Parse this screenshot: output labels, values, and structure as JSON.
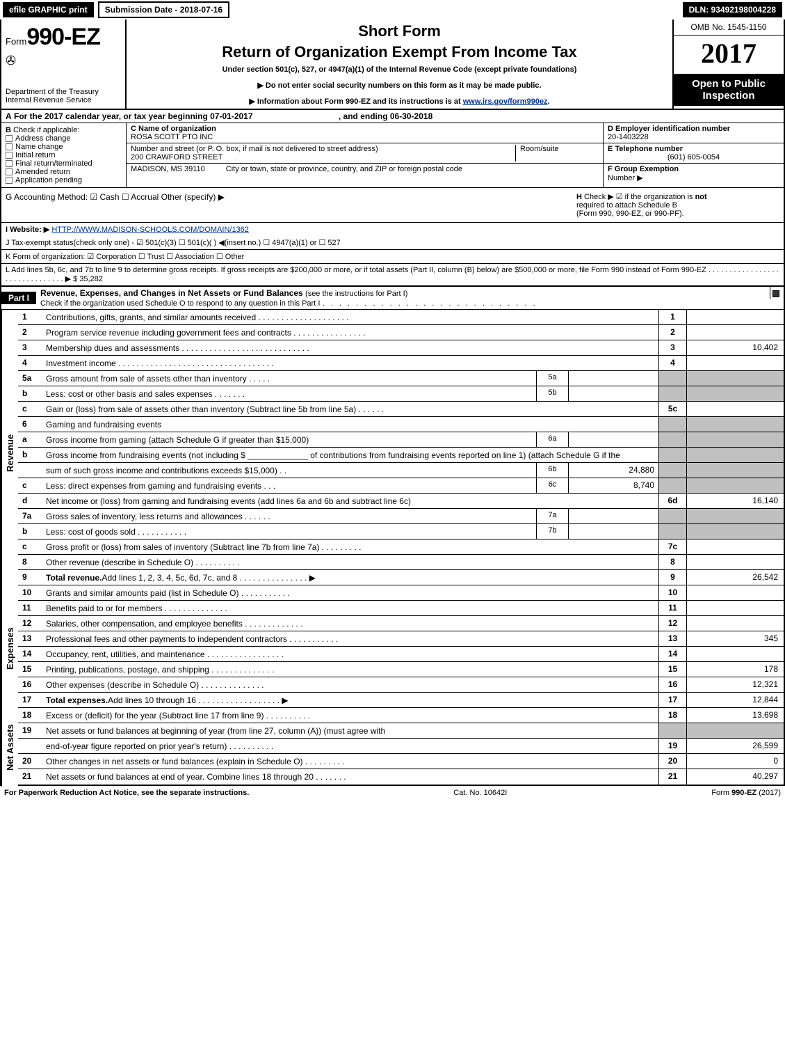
{
  "topbar": {
    "efile": "efile GRAPHIC print",
    "submission": "Submission Date - 2018-07-16",
    "dln": "DLN: 93492198004228"
  },
  "header": {
    "form_prefix": "Form",
    "form_number": "990-EZ",
    "dept1": "Department of the Treasury",
    "dept2": "Internal Revenue Service",
    "short_form": "Short Form",
    "main_title": "Return of Organization Exempt From Income Tax",
    "under_section": "Under section 501(c), 527, or 4947(a)(1) of the Internal Revenue Code (except private foundations)",
    "ssn_line": "▶ Do not enter social security numbers on this form as it may be made public.",
    "info_line_pre": "▶ Information about Form 990-EZ and its instructions is at ",
    "info_link": "www.irs.gov/form990ez",
    "info_line_post": ".",
    "omb": "OMB No. 1545-1150",
    "year": "2017",
    "open_public1": "Open to Public",
    "open_public2": "Inspection"
  },
  "tax_year": {
    "label_a": "A",
    "text": "For the 2017 calendar year, or tax year beginning 07-01-2017",
    "ending": ", and ending 06-30-2018"
  },
  "block_b": {
    "label": "B",
    "check_if": "Check if applicable:",
    "items": [
      "Address change",
      "Name change",
      "Initial return",
      "Final return/terminated",
      "Amended return",
      "Application pending"
    ]
  },
  "block_c": {
    "c_label": "C Name of organization",
    "c_value": "ROSA SCOTT PTO INC",
    "street_label": "Number and street (or P. O. box, if mail is not delivered to street address)",
    "street_value": "200 CRAWFORD STREET",
    "room_label": "Room/suite",
    "city_label": "City or town, state or province, country, and ZIP or foreign postal code",
    "city_value": "MADISON, MS  39110"
  },
  "block_d": {
    "d_label": "D Employer identification number",
    "d_value": "20-1403228",
    "e_label": "E Telephone number",
    "e_value": "(601) 605-0054",
    "f_label": "F Group Exemption",
    "f_label2": "Number ▶"
  },
  "g_line": {
    "g_left": "G Accounting Method:   ☑ Cash   ☐ Accrual   Other (specify) ▶",
    "h_label": "H",
    "h_text1": "Check ▶ ☑  if the organization is ",
    "h_not": "not",
    "h_text2": "required to attach Schedule B",
    "h_text3": "(Form 990, 990-EZ, or 990-PF)."
  },
  "i_line": {
    "label": "I Website: ▶",
    "url": "HTTP://WWW.MADISON-SCHOOLS.COM/DOMAIN/1362"
  },
  "j_line": "J Tax-exempt status(check only one) - ☑ 501(c)(3) ☐ 501(c)( ) ◀(insert no.) ☐ 4947(a)(1) or ☐ 527",
  "k_line": "K Form of organization: ☑ Corporation  ☐ Trust  ☐ Association  ☐ Other",
  "l_line": {
    "text": "L Add lines 5b, 6c, and 7b to line 9 to determine gross receipts. If gross receipts are $200,000 or more, or if total assets (Part II, column (B) below) are $500,000 or more, file Form 990 instead of Form 990-EZ  .  .  .  .  .  .  .  .  .  .  .  .  .  .  .  .  .  .  .  .  .  .  .  .  .  .  .  .  .  .  .  ▶ $ 35,282"
  },
  "part1": {
    "label": "Part I",
    "title": "Revenue, Expenses, and Changes in Net Assets or Fund Balances",
    "subtitle": "(see the instructions for Part I)",
    "check_line": "Check if the organization used Schedule O to respond to any question in this Part I"
  },
  "sections": {
    "revenue": "Revenue",
    "expenses": "Expenses",
    "netassets": "Net Assets"
  },
  "rows": [
    {
      "side": "revenue",
      "no": "1",
      "desc": "Contributions, gifts, grants, and similar amounts received  .  .  .  .  .  .  .  .  .  .  .  .  .  .  .  .  .  .  .  .",
      "end_no": "1",
      "end_val": "",
      "greybox": false
    },
    {
      "side": "revenue",
      "no": "2",
      "desc": "Program service revenue including government fees and contracts  .  .  .  .  .  .  .  .  .  .  .  .  .  .  .  .",
      "end_no": "2",
      "end_val": "",
      "greybox": false
    },
    {
      "side": "revenue",
      "no": "3",
      "desc": "Membership dues and assessments  .  .  .  .  .  .  .  .  .  .  .  .  .  .  .  .  .  .  .  .  .  .  .  .  .  .  .  .",
      "end_no": "3",
      "end_val": "10,402",
      "greybox": false
    },
    {
      "side": "revenue",
      "no": "4",
      "desc": "Investment income  .  .  .  .  .  .  .  .  .  .  .  .  .  .  .  .  .  .  .  .  .  .  .  .  .  .  .  .  .  .  .  .  .  .",
      "end_no": "4",
      "end_val": "",
      "greybox": false
    },
    {
      "side": "revenue",
      "no": "5a",
      "desc": "Gross amount from sale of assets other than inventory  .  .  .  .  .",
      "mid_no": "5a",
      "mid_val": "",
      "greybox": true
    },
    {
      "side": "revenue",
      "no": "b",
      "desc": "Less: cost or other basis and sales expenses  .  .  .  .  .  .  .",
      "mid_no": "5b",
      "mid_val": "",
      "greybox": true
    },
    {
      "side": "revenue",
      "no": "c",
      "desc": "Gain or (loss) from sale of assets other than inventory (Subtract line 5b from line 5a)     .  .  .  .  .  .",
      "end_no": "5c",
      "end_val": "",
      "greybox": false
    },
    {
      "side": "revenue",
      "no": "6",
      "desc": "Gaming and fundraising events",
      "greybox": true
    },
    {
      "side": "revenue",
      "no": "a",
      "desc": "Gross income from gaming (attach Schedule G if greater than $15,000)",
      "mid_no": "6a",
      "mid_val": "",
      "greybox": true
    },
    {
      "side": "revenue",
      "no": "b",
      "desc": "Gross income from fundraising events (not including $ _____________ of contributions from fundraising events reported on line 1) (attach Schedule G if the",
      "greybox": true
    },
    {
      "side": "revenue",
      "no": "",
      "desc": "sum of such gross income and contributions exceeds $15,000)    .   .",
      "mid_no": "6b",
      "mid_val": "24,880",
      "greybox": true
    },
    {
      "side": "revenue",
      "no": "c",
      "desc": "Less: direct expenses from gaming and fundraising events     .  .  .",
      "mid_no": "6c",
      "mid_val": "8,740",
      "greybox": true
    },
    {
      "side": "revenue",
      "no": "d",
      "desc": "Net income or (loss) from gaming and fundraising events (add lines 6a and 6b and subtract line 6c)",
      "end_no": "6d",
      "end_val": "16,140",
      "greybox": false
    },
    {
      "side": "revenue",
      "no": "7a",
      "desc": "Gross sales of inventory, less returns and allowances       .  .  .  .  .  .",
      "mid_no": "7a",
      "mid_val": "",
      "greybox": true
    },
    {
      "side": "revenue",
      "no": "b",
      "desc": "Less: cost of goods sold                    .  .  .  .  .  .  .  .  .  .  .",
      "mid_no": "7b",
      "mid_val": "",
      "greybox": true
    },
    {
      "side": "revenue",
      "no": "c",
      "desc": "Gross profit or (loss) from sales of inventory (Subtract line 7b from line 7a)      .  .  .  .  .  .  .  .  .",
      "end_no": "7c",
      "end_val": "",
      "greybox": false
    },
    {
      "side": "revenue",
      "no": "8",
      "desc": "Other revenue (describe in Schedule O)               .  .  .  .  .  .  .  .  .  .",
      "end_no": "8",
      "end_val": "",
      "greybox": false
    },
    {
      "side": "revenue",
      "no": "9",
      "desc_bold": "Total revenue.",
      "desc": " Add lines 1, 2, 3, 4, 5c, 6d, 7c, and 8    .  .  .  .  .  .  .  .  .  .  .  .  .  .  .  ▶",
      "end_no": "9",
      "end_val": "26,542",
      "greybox": false
    },
    {
      "side": "expenses",
      "no": "10",
      "desc": "Grants and similar amounts paid (list in Schedule O)        .  .  .  .  .  .  .  .  .  .  .",
      "end_no": "10",
      "end_val": "",
      "greybox": false
    },
    {
      "side": "expenses",
      "no": "11",
      "desc": "Benefits paid to or for members             .  .  .  .  .  .  .  .  .  .  .  .  .  .",
      "end_no": "11",
      "end_val": "",
      "greybox": false
    },
    {
      "side": "expenses",
      "no": "12",
      "desc": "Salaries, other compensation, and employee benefits       .  .  .  .  .  .  .  .  .  .  .  .  .",
      "end_no": "12",
      "end_val": "",
      "greybox": false
    },
    {
      "side": "expenses",
      "no": "13",
      "desc": "Professional fees and other payments to independent contractors      .  .  .  .  .  .  .  .  .  .  .",
      "end_no": "13",
      "end_val": "345",
      "greybox": false
    },
    {
      "side": "expenses",
      "no": "14",
      "desc": "Occupancy, rent, utilities, and maintenance       .  .  .  .  .  .  .  .  .  .  .  .  .  .  .  .  .",
      "end_no": "14",
      "end_val": "",
      "greybox": false
    },
    {
      "side": "expenses",
      "no": "15",
      "desc": "Printing, publications, postage, and shipping         .  .  .  .  .  .  .  .  .  .  .  .  .  .",
      "end_no": "15",
      "end_val": "178",
      "greybox": false
    },
    {
      "side": "expenses",
      "no": "16",
      "desc": "Other expenses (describe in Schedule O)           .  .  .  .  .  .  .  .  .  .  .  .  .  .",
      "end_no": "16",
      "end_val": "12,321",
      "greybox": false
    },
    {
      "side": "expenses",
      "no": "17",
      "desc_bold": "Total expenses.",
      "desc": " Add lines 10 through 16     .  .  .  .  .  .  .  .  .  .  .  .  .  .  .  .  .  .  ▶",
      "end_no": "17",
      "end_val": "12,844",
      "greybox": false
    },
    {
      "side": "netassets",
      "no": "18",
      "desc": "Excess or (deficit) for the year (Subtract line 17 from line 9)       .  .  .  .  .  .  .  .  .  .",
      "end_no": "18",
      "end_val": "13,698",
      "greybox": false
    },
    {
      "side": "netassets",
      "no": "19",
      "desc": "Net assets or fund balances at beginning of year (from line 27, column (A)) (must agree with",
      "greybox": true
    },
    {
      "side": "netassets",
      "no": "",
      "desc": "end-of-year figure reported on prior year's return)         .  .  .  .  .  .  .  .  .  .",
      "end_no": "19",
      "end_val": "26,599",
      "greybox": false
    },
    {
      "side": "netassets",
      "no": "20",
      "desc": "Other changes in net assets or fund balances (explain in Schedule O)      .  .  .  .  .  .  .  .  .",
      "end_no": "20",
      "end_val": "0",
      "greybox": false
    },
    {
      "side": "netassets",
      "no": "21",
      "desc": "Net assets or fund balances at end of year. Combine lines 18 through 20      .  .  .  .  .  .  .",
      "end_no": "21",
      "end_val": "40,297",
      "greybox": false
    }
  ],
  "footer": {
    "left": "For Paperwork Reduction Act Notice, see the separate instructions.",
    "mid": "Cat. No. 10642I",
    "right_pre": "Form ",
    "right_bold": "990-EZ",
    "right_post": " (2017)"
  },
  "colors": {
    "black": "#000000",
    "grey": "#c0c0c0",
    "link": "#003399",
    "white": "#ffffff"
  }
}
